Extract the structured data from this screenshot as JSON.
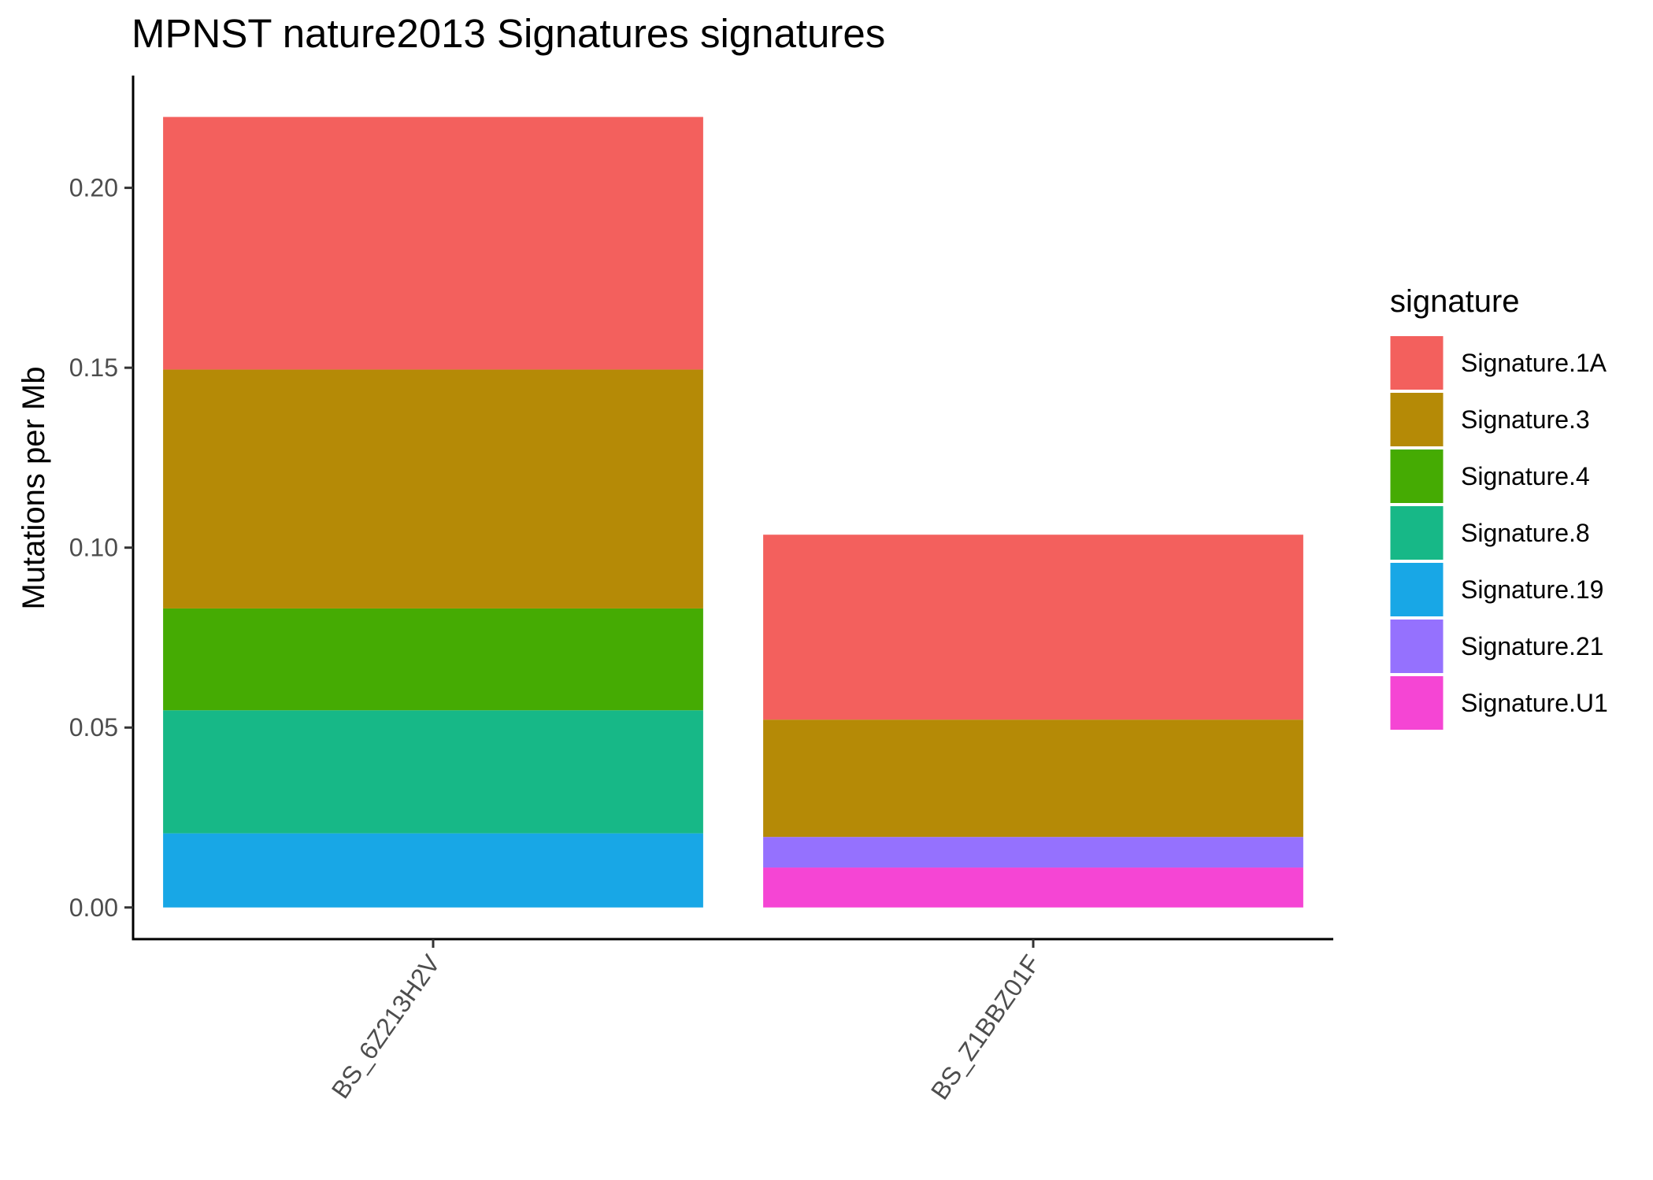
{
  "chart_data": {
    "type": "bar",
    "stacked": true,
    "title": "MPNST nature2013 Signatures signatures",
    "xlabel": "",
    "ylabel": "Mutations per Mb",
    "ylim": [
      -0.0088,
      0.2312
    ],
    "yticks": [
      0.0,
      0.05,
      0.1,
      0.15,
      0.2
    ],
    "ytick_labels": [
      "0.00",
      "0.05",
      "0.10",
      "0.15",
      "0.20"
    ],
    "categories": [
      "BS_6Z213H2V",
      "BS_Z1BBZ01F"
    ],
    "grid": false,
    "legend": {
      "title": "signature",
      "position": "right"
    },
    "series": [
      {
        "name": "Signature.1A",
        "color": "#F3605D",
        "values": [
          0.0702,
          0.0514
        ]
      },
      {
        "name": "Signature.3",
        "color": "#B58A06",
        "values": [
          0.0664,
          0.0326
        ]
      },
      {
        "name": "Signature.4",
        "color": "#45AB03",
        "values": [
          0.0283,
          0
        ]
      },
      {
        "name": "Signature.8",
        "color": "#17B887",
        "values": [
          0.0342,
          0
        ]
      },
      {
        "name": "Signature.19",
        "color": "#18A7E6",
        "values": [
          0.0206,
          0
        ]
      },
      {
        "name": "Signature.21",
        "color": "#9571FE",
        "values": [
          0,
          0.0085
        ]
      },
      {
        "name": "Signature.U1",
        "color": "#F545D4",
        "values": [
          0,
          0.0111
        ]
      }
    ]
  }
}
